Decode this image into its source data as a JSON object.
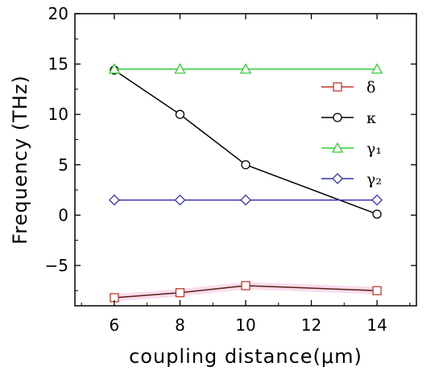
{
  "chart_data": {
    "type": "line",
    "title": "",
    "xlabel": "coupling distance(μm)",
    "ylabel": "Frequency (THz)",
    "xlim": [
      4.8,
      15.2
    ],
    "ylim": [
      -9,
      20
    ],
    "xticks": [
      6,
      8,
      10,
      12,
      14
    ],
    "yticks": [
      -5,
      0,
      5,
      10,
      15,
      20
    ],
    "x": [
      6,
      8,
      10,
      14
    ],
    "grid": false,
    "legend_position": "upper-right",
    "series": [
      {
        "name": "δ",
        "marker": "square",
        "color": "#c0392b",
        "values": [
          -8.2,
          -7.7,
          -7.0,
          -7.5
        ]
      },
      {
        "name": "κ",
        "marker": "circle",
        "color": "#000000",
        "values": [
          14.4,
          10.0,
          5.0,
          0.1
        ]
      },
      {
        "name": "γ₁",
        "marker": "triangle",
        "color": "#33cc33",
        "values": [
          14.5,
          14.5,
          14.5,
          14.5
        ]
      },
      {
        "name": "γ₂",
        "marker": "diamond",
        "color": "#3333aa",
        "values": [
          1.5,
          1.5,
          1.5,
          1.5
        ]
      }
    ]
  }
}
